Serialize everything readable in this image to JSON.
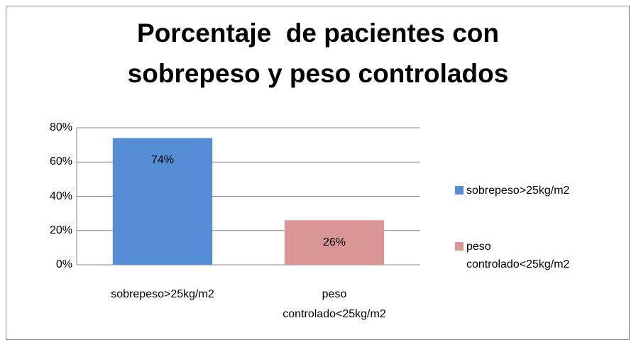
{
  "chart_data": {
    "type": "bar",
    "title": "Porcentaje  de pacientes con\nsobrepeso y peso controlados",
    "categories": [
      "sobrepeso>25kg/m2",
      "peso controlado<25kg/m2"
    ],
    "values": [
      74,
      26
    ],
    "value_labels": [
      "74%",
      "26%"
    ],
    "colors": [
      "#558ed5",
      "#d99694"
    ],
    "ylim": [
      0,
      80
    ],
    "yticks": [
      {
        "value": 0,
        "label": "0%"
      },
      {
        "value": 20,
        "label": "20%"
      },
      {
        "value": 40,
        "label": "40%"
      },
      {
        "value": 60,
        "label": "60%"
      },
      {
        "value": 80,
        "label": "80%"
      }
    ],
    "grid": true,
    "legend": "right"
  }
}
